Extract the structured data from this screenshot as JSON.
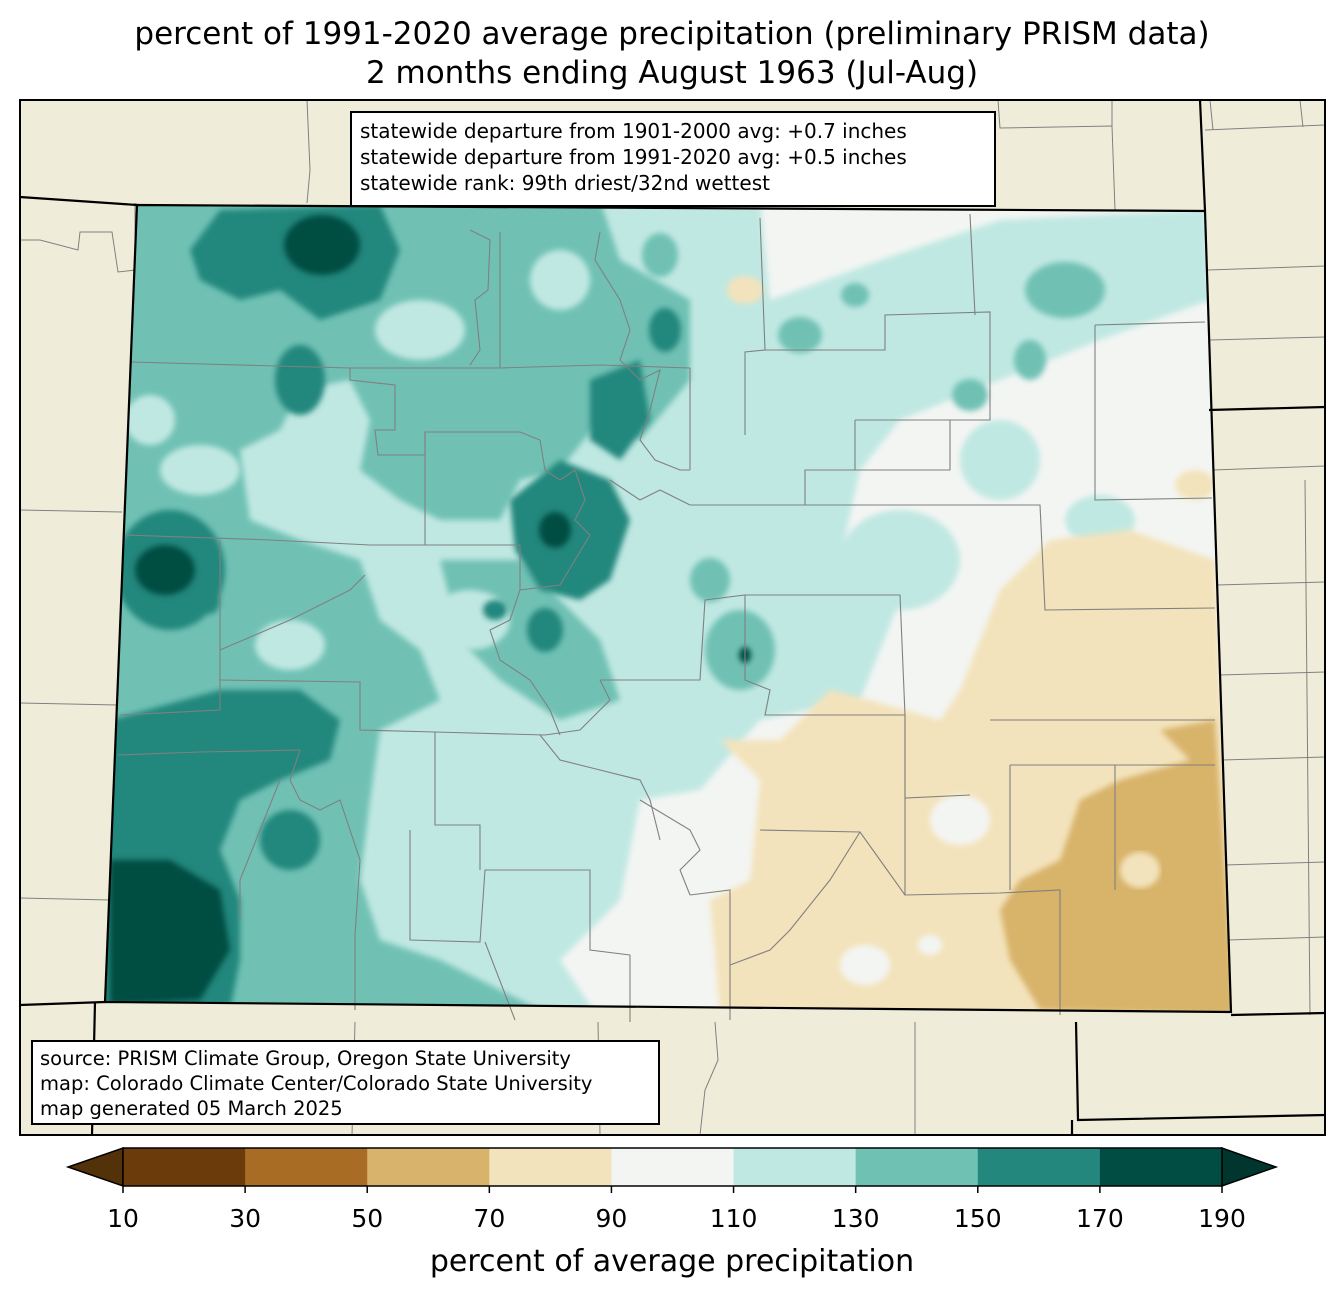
{
  "title": {
    "line1": "percent of 1991-2020 average precipitation (preliminary PRISM data)",
    "line2": "2 months ending August 1963 (Jul-Aug)"
  },
  "stats": {
    "line1": "statewide departure from 1901-2000 avg: +0.7 inches",
    "line2": "statewide departure from 1991-2020 avg: +0.5 inches",
    "line3": "statewide rank: 99th driest/32nd wettest"
  },
  "source": {
    "line1": "source: PRISM Climate Group, Oregon State University",
    "line2": "map: Colorado Climate Center/Colorado State University",
    "line3": "map generated 05 March 2025"
  },
  "colorbar": {
    "label": "percent of average precipitation",
    "ticks": [
      "10",
      "30",
      "50",
      "70",
      "90",
      "110",
      "130",
      "150",
      "170",
      "190"
    ],
    "colors": [
      "#6b3b0b",
      "#a86c25",
      "#d8b36b",
      "#f3e3bc",
      "#f3f5f3",
      "#c0e8e2",
      "#6fc1b4",
      "#23877d",
      "#024d43"
    ],
    "under_color": "#533209",
    "over_color": "#01362f"
  },
  "map_colors": {
    "background": "#efedda",
    "county_lines": "#808080",
    "state_lines": "#000000"
  }
}
